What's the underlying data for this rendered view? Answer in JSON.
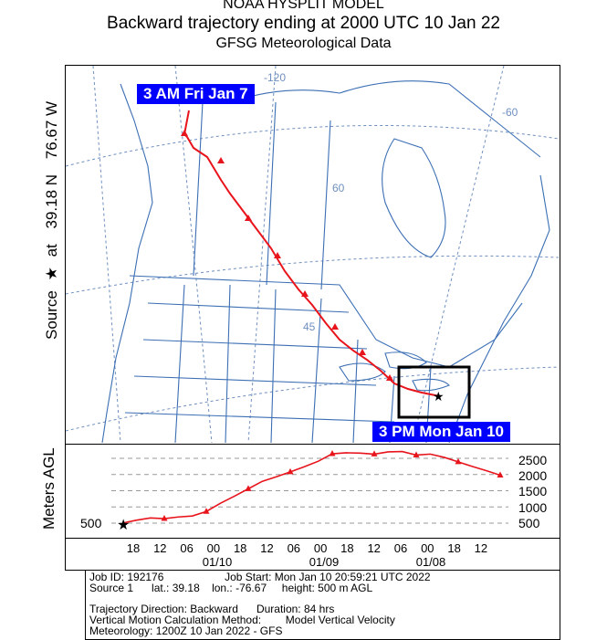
{
  "header": {
    "line1": "NOAA HYSPLIT MODEL",
    "line2": "Backward trajectory ending at 2000 UTC 10 Jan 22",
    "line3": "GFSG Meteorological Data"
  },
  "side_label": {
    "source": "Source",
    "star": "★",
    "at": "at",
    "lat": "39.18 N",
    "lon": "76.67 W"
  },
  "map": {
    "start_tag": "3 AM  Fri Jan 7",
    "end_tag": "3 PM Mon Jan 10",
    "graticule_labels": [
      "-120",
      "-60",
      "60",
      "45"
    ],
    "colors": {
      "land_lines": "#3c6fb4",
      "graticule": "#6f8fbf",
      "trajectory": "#e8141c",
      "tag_bg": "#0000ff"
    }
  },
  "height_panel": {
    "ylabel": "Meters AGL",
    "source_height_label": "500",
    "ytick_labels": [
      "2500",
      "2000",
      "1500",
      "1000",
      "500"
    ],
    "xtick_labels": [
      "18",
      "12",
      "06",
      "00",
      "18",
      "12",
      "06",
      "00",
      "18",
      "12",
      "06",
      "00",
      "18",
      "12"
    ],
    "date_labels": [
      "01/10",
      "01/09",
      "01/08"
    ]
  },
  "chart_data": {
    "type": "line",
    "ylabel": "Meters AGL",
    "series": [
      {
        "values": [
          500,
          590,
          660,
          640,
          690,
          720,
          860,
          1110,
          1330,
          1560,
          1790,
          1930,
          2080,
          2240,
          2410,
          2640,
          2670,
          2660,
          2630,
          2700,
          2710,
          2600,
          2630,
          2530,
          2390,
          2250,
          2120,
          1980
        ]
      }
    ]
  },
  "info": {
    "line1": "Job ID: 192176                    Job Start: Mon Jan 10 20:59:21 UTC 2022",
    "line2": "Source 1      lat.: 39.18    lon.: -76.67     height: 500 m AGL",
    "line3": "Trajectory Direction: Backward      Duration: 84 hrs",
    "line4": "Vertical Motion Calculation Method:        Model Vertical Velocity",
    "line5": "Meteorology: 1200Z 10 Jan 2022 - GFS"
  }
}
